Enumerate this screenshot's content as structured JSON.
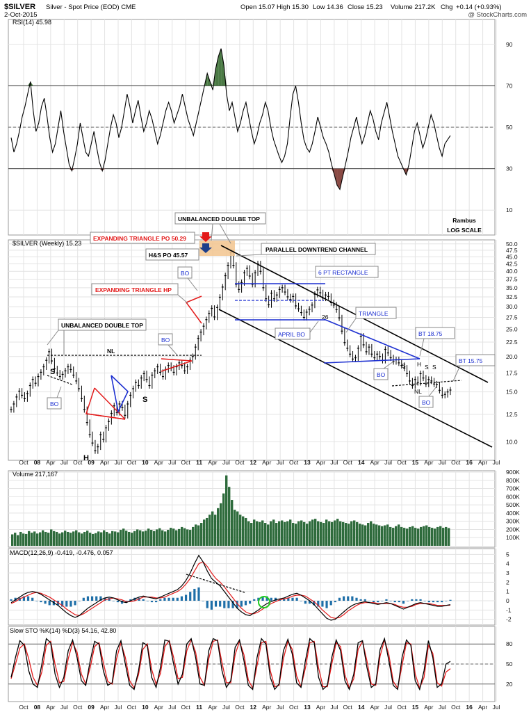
{
  "header": {
    "symbol": "$SILVER",
    "description": "Silver - Spot Price (EOD)  CME",
    "date": "2-Oct-2015",
    "open": "Open 15.07",
    "high": "High 15.30",
    "low": "Low 14.36",
    "close": "Close 15.23",
    "volume": "Volume 217.2K",
    "chg_label": "Chg",
    "chg": "+0.14 (+0.93%)",
    "copyright": "@ StockCharts.com"
  },
  "time_axis": {
    "labels": [
      "Oct",
      "08",
      "Apr",
      "Jul",
      "Oct",
      "09",
      "Apr",
      "Jul",
      "Oct",
      "10",
      "Apr",
      "Jul",
      "Oct",
      "11",
      "Apr",
      "Jul",
      "Oct",
      "12",
      "Apr",
      "Jul",
      "Oct",
      "13",
      "Apr",
      "Jul",
      "Oct",
      "14",
      "Apr",
      "Jul",
      "Oct",
      "15",
      "Apr",
      "Jul",
      "Oct",
      "16",
      "Apr",
      "Jul"
    ],
    "bold": [
      "08",
      "09",
      "10",
      "11",
      "12",
      "13",
      "14",
      "15",
      "16"
    ]
  },
  "chart_data": [
    {
      "type": "line",
      "panel": "rsi",
      "title": "RSI(14) 45.98",
      "ylim": [
        0,
        100
      ],
      "yticks": [
        10,
        30,
        50,
        70,
        90
      ],
      "reference_lines": [
        30,
        50,
        70
      ],
      "values": [
        45,
        38,
        42,
        48,
        55,
        60,
        66,
        72,
        58,
        48,
        52,
        60,
        64,
        55,
        45,
        38,
        42,
        50,
        58,
        48,
        40,
        32,
        29,
        35,
        42,
        52,
        45,
        38,
        36,
        42,
        48,
        40,
        33,
        29,
        34,
        42,
        50,
        56,
        52,
        45,
        50,
        58,
        66,
        60,
        52,
        58,
        63,
        55,
        48,
        52,
        58,
        54,
        48,
        42,
        46,
        52,
        58,
        62,
        58,
        52,
        56,
        60,
        66,
        60,
        54,
        50,
        46,
        52,
        58,
        64,
        70,
        76,
        72,
        68,
        78,
        84,
        88,
        80,
        66,
        58,
        62,
        55,
        48,
        52,
        58,
        62,
        55,
        48,
        42,
        46,
        52,
        56,
        62,
        58,
        50,
        44,
        40,
        36,
        33,
        36,
        42,
        55,
        66,
        70,
        62,
        52,
        44,
        40,
        38,
        42,
        48,
        55,
        50,
        45,
        42,
        38,
        32,
        27,
        22,
        20,
        26,
        32,
        38,
        45,
        50,
        55,
        48,
        42,
        46,
        52,
        58,
        54,
        48,
        44,
        52,
        57,
        62,
        55,
        48,
        42,
        36,
        33,
        30,
        27,
        32,
        40,
        48,
        52,
        46,
        40,
        44,
        50,
        56,
        52,
        46,
        40,
        36,
        42,
        44,
        46
      ]
    },
    {
      "type": "candlestick",
      "panel": "price",
      "title": "$SILVER (Weekly) 15.23",
      "scale": "log",
      "ylim": [
        8.8,
        50.5
      ],
      "yticks": [
        10,
        12.5,
        15,
        17.5,
        20,
        22.5,
        25,
        27.5,
        30,
        32.5,
        35,
        37.5,
        40,
        42.5,
        45,
        47.5,
        50
      ],
      "ytick_labels": [
        "10.0",
        "12.5",
        "15.0",
        "17.5",
        "20.0",
        "22.5",
        "25.0",
        "27.5",
        "30.0",
        "32.5",
        "35.0",
        "37.5",
        "40.0",
        "42.5",
        "45.0",
        "47.5",
        "50.0"
      ],
      "close": [
        13.0,
        13.6,
        14.4,
        15.1,
        14.6,
        14.2,
        14.8,
        15.8,
        16.6,
        16.1,
        17.0,
        17.6,
        18.4,
        19.4,
        20.8,
        19.3,
        18.1,
        17.5,
        17.0,
        17.3,
        17.8,
        18.4,
        18.0,
        17.2,
        16.4,
        15.4,
        14.2,
        13.0,
        11.7,
        10.6,
        9.9,
        9.3,
        9.6,
        10.6,
        10.2,
        11.2,
        11.8,
        12.6,
        13.4,
        12.7,
        13.6,
        13.2,
        12.4,
        13.6,
        14.6,
        15.4,
        16.2,
        15.8,
        16.8,
        17.4,
        16.6,
        15.8,
        17.2,
        17.8,
        18.4,
        17.6,
        17.0,
        18.0,
        18.6,
        18.2,
        17.6,
        18.4,
        19.0,
        18.6,
        17.8,
        18.4,
        19.4,
        20.0,
        21.6,
        23.2,
        24.4,
        25.6,
        27.0,
        28.4,
        29.6,
        27.6,
        29.8,
        32.4,
        35.2,
        38.6,
        42.0,
        46.5,
        42.0,
        36.0,
        34.5,
        36.5,
        39.5,
        41.0,
        38.5,
        36.0,
        39.5,
        42.5,
        40.0,
        35.0,
        32.0,
        30.5,
        33.5,
        32.0,
        33.0,
        34.5,
        35.0,
        33.8,
        32.5,
        31.8,
        32.6,
        30.2,
        29.5,
        28.6,
        27.5,
        28.7,
        29.4,
        30.4,
        33.2,
        34.4,
        33.6,
        32.2,
        33.0,
        32.6,
        31.0,
        30.4,
        29.3,
        27.4,
        24.6,
        22.4,
        21.4,
        20.4,
        19.6,
        19.8,
        21.4,
        23.6,
        22.0,
        20.8,
        21.6,
        20.4,
        19.8,
        20.4,
        20.0,
        19.4,
        21.2,
        20.6,
        19.8,
        19.2,
        19.5,
        19.0,
        18.6,
        18.2,
        17.4,
        16.4,
        15.8,
        16.6,
        16.2,
        17.4,
        16.8,
        16.0,
        16.6,
        16.4,
        16.0,
        15.9,
        15.2,
        14.6,
        14.7,
        15.0,
        15.23
      ],
      "patterns": {
        "nl_left": 19.5,
        "expanding_triangle_po": 50.29,
        "hs_po": 45.57,
        "rectangle_top": 35.2,
        "rectangle_mid": 30.8,
        "rectangle_bottom": 26.4,
        "triangle_top_bt": 18.75,
        "nl_right": 15.6,
        "bt_right": 15.75
      }
    },
    {
      "type": "bar",
      "panel": "volume",
      "title": "Volume 217,167",
      "ylim": [
        0,
        900000
      ],
      "yticks": [
        100000,
        200000,
        300000,
        400000,
        500000,
        600000,
        700000,
        800000,
        900000
      ],
      "ytick_labels": [
        "100K",
        "200K",
        "300K",
        "400K",
        "500K",
        "600K",
        "700K",
        "800K",
        "900K"
      ],
      "values": [
        140,
        160,
        130,
        170,
        150,
        145,
        180,
        160,
        175,
        150,
        165,
        190,
        170,
        160,
        200,
        180,
        170,
        150,
        165,
        185,
        170,
        160,
        175,
        190,
        165,
        150,
        170,
        185,
        160,
        145,
        155,
        175,
        165,
        190,
        170,
        150,
        180,
        175,
        165,
        195,
        210,
        185,
        170,
        160,
        180,
        200,
        190,
        175,
        185,
        210,
        195,
        180,
        200,
        215,
        190,
        175,
        195,
        220,
        210,
        190,
        205,
        230,
        215,
        200,
        195,
        230,
        260,
        250,
        280,
        320,
        340,
        380,
        420,
        380,
        460,
        520,
        640,
        860,
        720,
        560,
        440,
        420,
        380,
        360,
        340,
        300,
        280,
        320,
        300,
        290,
        310,
        280,
        260,
        300,
        320,
        280,
        300,
        310,
        290,
        300,
        320,
        280,
        270,
        300,
        310,
        290,
        270,
        300,
        320,
        330,
        300,
        290,
        280,
        320,
        300,
        290,
        310,
        330,
        300,
        290,
        280,
        270,
        300,
        310,
        290,
        270,
        260,
        250,
        280,
        300,
        270,
        260,
        250,
        240,
        250,
        260,
        230,
        220,
        240,
        260,
        230,
        220,
        210,
        230,
        240,
        220,
        210,
        230,
        240,
        250,
        230,
        220,
        210,
        230,
        240,
        220,
        230,
        217
      ]
    },
    {
      "type": "line",
      "panel": "macd",
      "title": "MACD(12,26,9) -0.419, -0.476, 0.057",
      "ylim": [
        -2.4,
        5.4
      ],
      "yticks": [
        -2,
        -1,
        0,
        1,
        2,
        3,
        4,
        5
      ],
      "series": [
        {
          "name": "MACD(12,26,9)",
          "values": [
            -0.2,
            0.1,
            0.4,
            0.7,
            0.9,
            1.0,
            0.9,
            0.7,
            0.4,
            0.1,
            -0.2,
            -0.5,
            -0.9,
            -1.3,
            -1.6,
            -1.8,
            -1.6,
            -1.2,
            -0.8,
            -0.5,
            -0.2,
            0.1,
            0.3,
            0.4,
            0.3,
            0.1,
            -0.1,
            -0.2,
            0.0,
            0.2,
            0.4,
            0.5,
            0.4,
            0.3,
            0.2,
            0.4,
            0.6,
            0.8,
            1.0,
            1.2,
            1.6,
            2.2,
            3.0,
            4.0,
            4.9,
            4.2,
            3.2,
            2.4,
            2.0,
            1.6,
            1.0,
            0.4,
            -0.2,
            -0.8,
            -1.2,
            -1.5,
            -1.6,
            -1.3,
            -1.0,
            -0.6,
            -0.3,
            -0.1,
            0.1,
            0.2,
            0.3,
            0.5,
            0.7,
            0.8,
            0.6,
            0.3,
            0.0,
            -0.4,
            -0.9,
            -1.4,
            -1.9,
            -2.1,
            -2.0,
            -1.6,
            -1.2,
            -0.8,
            -0.5,
            -0.3,
            -0.2,
            -0.1,
            -0.2,
            -0.3,
            -0.4,
            -0.3,
            -0.2,
            -0.3,
            -0.5,
            -0.7,
            -0.9,
            -0.7,
            -0.5,
            -0.3,
            -0.2,
            -0.3,
            -0.4,
            -0.5,
            -0.6,
            -0.6,
            -0.5,
            -0.42
          ]
        },
        {
          "name": "signal",
          "values": [
            -0.3,
            -0.1,
            0.2,
            0.4,
            0.6,
            0.8,
            0.9,
            0.8,
            0.6,
            0.4,
            0.1,
            -0.2,
            -0.5,
            -0.9,
            -1.2,
            -1.5,
            -1.6,
            -1.4,
            -1.1,
            -0.8,
            -0.5,
            -0.2,
            0.1,
            0.2,
            0.3,
            0.2,
            0.1,
            -0.1,
            -0.1,
            0.0,
            0.2,
            0.4,
            0.4,
            0.4,
            0.3,
            0.3,
            0.4,
            0.6,
            0.8,
            1.0,
            1.3,
            1.8,
            2.4,
            3.2,
            4.0,
            4.2,
            3.7,
            3.0,
            2.4,
            2.0,
            1.5,
            0.9,
            0.3,
            -0.3,
            -0.8,
            -1.2,
            -1.4,
            -1.4,
            -1.2,
            -0.9,
            -0.6,
            -0.3,
            -0.1,
            0.1,
            0.2,
            0.3,
            0.5,
            0.6,
            0.6,
            0.5,
            0.2,
            -0.1,
            -0.5,
            -1.0,
            -1.4,
            -1.8,
            -1.9,
            -1.8,
            -1.5,
            -1.1,
            -0.8,
            -0.5,
            -0.3,
            -0.2,
            -0.2,
            -0.2,
            -0.3,
            -0.3,
            -0.3,
            -0.3,
            -0.4,
            -0.6,
            -0.7,
            -0.7,
            -0.6,
            -0.4,
            -0.3,
            -0.3,
            -0.3,
            -0.4,
            -0.5,
            -0.5,
            -0.5,
            -0.48
          ]
        }
      ]
    },
    {
      "type": "line",
      "panel": "stochastic",
      "title": "Slow STO %K(14) %D(3) 54.16, 42.80",
      "ylim": [
        0,
        100
      ],
      "yticks": [
        20,
        50,
        80
      ],
      "reference_lines": [
        20,
        50,
        80
      ],
      "series": [
        {
          "name": "%K(14)",
          "values": [
            30,
            60,
            85,
            78,
            40,
            20,
            15,
            50,
            88,
            82,
            35,
            15,
            30,
            70,
            86,
            60,
            25,
            18,
            55,
            84,
            80,
            40,
            18,
            22,
            70,
            85,
            50,
            18,
            12,
            40,
            82,
            78,
            30,
            15,
            45,
            86,
            84,
            50,
            20,
            35,
            80,
            88,
            60,
            20,
            18,
            70,
            88,
            85,
            40,
            15,
            25,
            75,
            86,
            55,
            18,
            12,
            60,
            88,
            80,
            30,
            12,
            20,
            70,
            87,
            65,
            22,
            15,
            55,
            88,
            82,
            30,
            12,
            18,
            60,
            86,
            70,
            25,
            12,
            35,
            82,
            85,
            45,
            15,
            20,
            72,
            88,
            55,
            18,
            12,
            60,
            86,
            78,
            25,
            12,
            40,
            85,
            60,
            15,
            20,
            50,
            54
          ]
        },
        {
          "name": "%D(3)",
          "values": [
            28,
            50,
            74,
            80,
            58,
            30,
            18,
            38,
            78,
            84,
            50,
            22,
            24,
            58,
            82,
            68,
            35,
            20,
            45,
            76,
            82,
            52,
            24,
            20,
            58,
            82,
            60,
            25,
            14,
            34,
            72,
            80,
            42,
            20,
            36,
            76,
            85,
            60,
            28,
            30,
            70,
            86,
            68,
            30,
            18,
            58,
            84,
            86,
            52,
            22,
            22,
            64,
            84,
            64,
            26,
            14,
            48,
            82,
            84,
            40,
            16,
            18,
            58,
            84,
            72,
            32,
            16,
            44,
            82,
            84,
            44,
            16,
            16,
            50,
            82,
            76,
            34,
            14,
            28,
            72,
            84,
            55,
            20,
            18,
            62,
            86,
            64,
            24,
            14,
            48,
            82,
            80,
            35,
            14,
            30,
            78,
            66,
            22,
            17,
            38,
            43
          ]
        }
      ]
    }
  ],
  "labels": {
    "rambus": "Rambus",
    "log_scale": "LOG SCALE",
    "unbalanced_double_top_left": "UNBALANCED DOUBLE TOP",
    "unbalanced_doulbe_top": "UNBALANCED DOULBE TOP",
    "expanding_triangle_po": "EXPANDING TRIANGLE PO 50.29",
    "hs_po": "H&S PO 45.57",
    "expanding_triangle_hp": "EXPANDING TRIANGLE HP",
    "parallel_downtrend_channel": "PARALLEL DOWNTREND CHANNEL",
    "six_pt_rectangle": "6 PT RECTANGLE",
    "triangle": "TRIANGLE",
    "april_bo": "APRIL BO",
    "bt_1875": "BT 18.75",
    "bt_1575": "BT 15.75",
    "nl": "NL",
    "bo": "BO",
    "s": "S",
    "h": "H",
    "twenty_six": "26"
  },
  "colors": {
    "grid": "#e3e3e3",
    "price": "#000000",
    "volume": "#2e6b3c",
    "rsi_fill_high": "#4b7a45",
    "rsi_fill_low": "#8a4a44",
    "macd": "#000000",
    "signal": "#e31a1a",
    "histogram": "#1f6fa8",
    "pattern_blue": "#1c2fd0",
    "pattern_red": "#e31a1a",
    "po_zone": "#f2c48e",
    "green_circle": "#22cc22"
  }
}
